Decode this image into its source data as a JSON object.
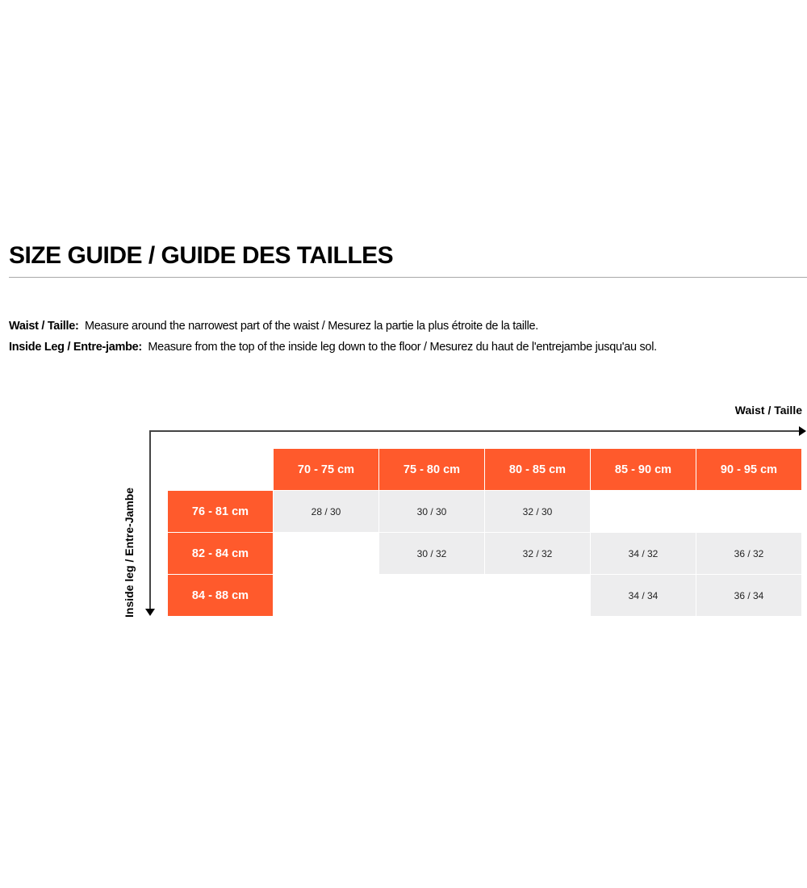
{
  "title": "SIZE GUIDE / GUIDE DES TAILLES",
  "descriptions": [
    {
      "label": "Waist / Taille",
      "text": "Measure around the narrowest part of the waist / Mesurez la partie la plus étroite de la taille."
    },
    {
      "label": "Inside Leg / Entre-jambe",
      "text": "Measure from the top of the inside leg down to the floor / Mesurez du haut de l'entrejambe jusqu'au sol."
    }
  ],
  "separator": ":",
  "axes": {
    "x_label": "Waist / Taille",
    "y_label": "Inside leg / Entre-Jambe"
  },
  "colors": {
    "header": "#ff5a2c",
    "cell": "#ededee"
  },
  "table": {
    "columns": [
      "70 - 75 cm",
      "75 - 80 cm",
      "80 - 85 cm",
      "85 - 90 cm",
      "90 - 95 cm"
    ],
    "rows": [
      {
        "label": "76 - 81 cm",
        "values": [
          "28 / 30",
          "30 / 30",
          "32 / 30",
          "",
          ""
        ]
      },
      {
        "label": "82 - 84 cm",
        "values": [
          "",
          "30 / 32",
          "32 / 32",
          "34 / 32",
          "36 / 32"
        ]
      },
      {
        "label": "84 - 88 cm",
        "values": [
          "",
          "",
          "",
          "34 / 34",
          "36 / 34"
        ]
      }
    ]
  }
}
